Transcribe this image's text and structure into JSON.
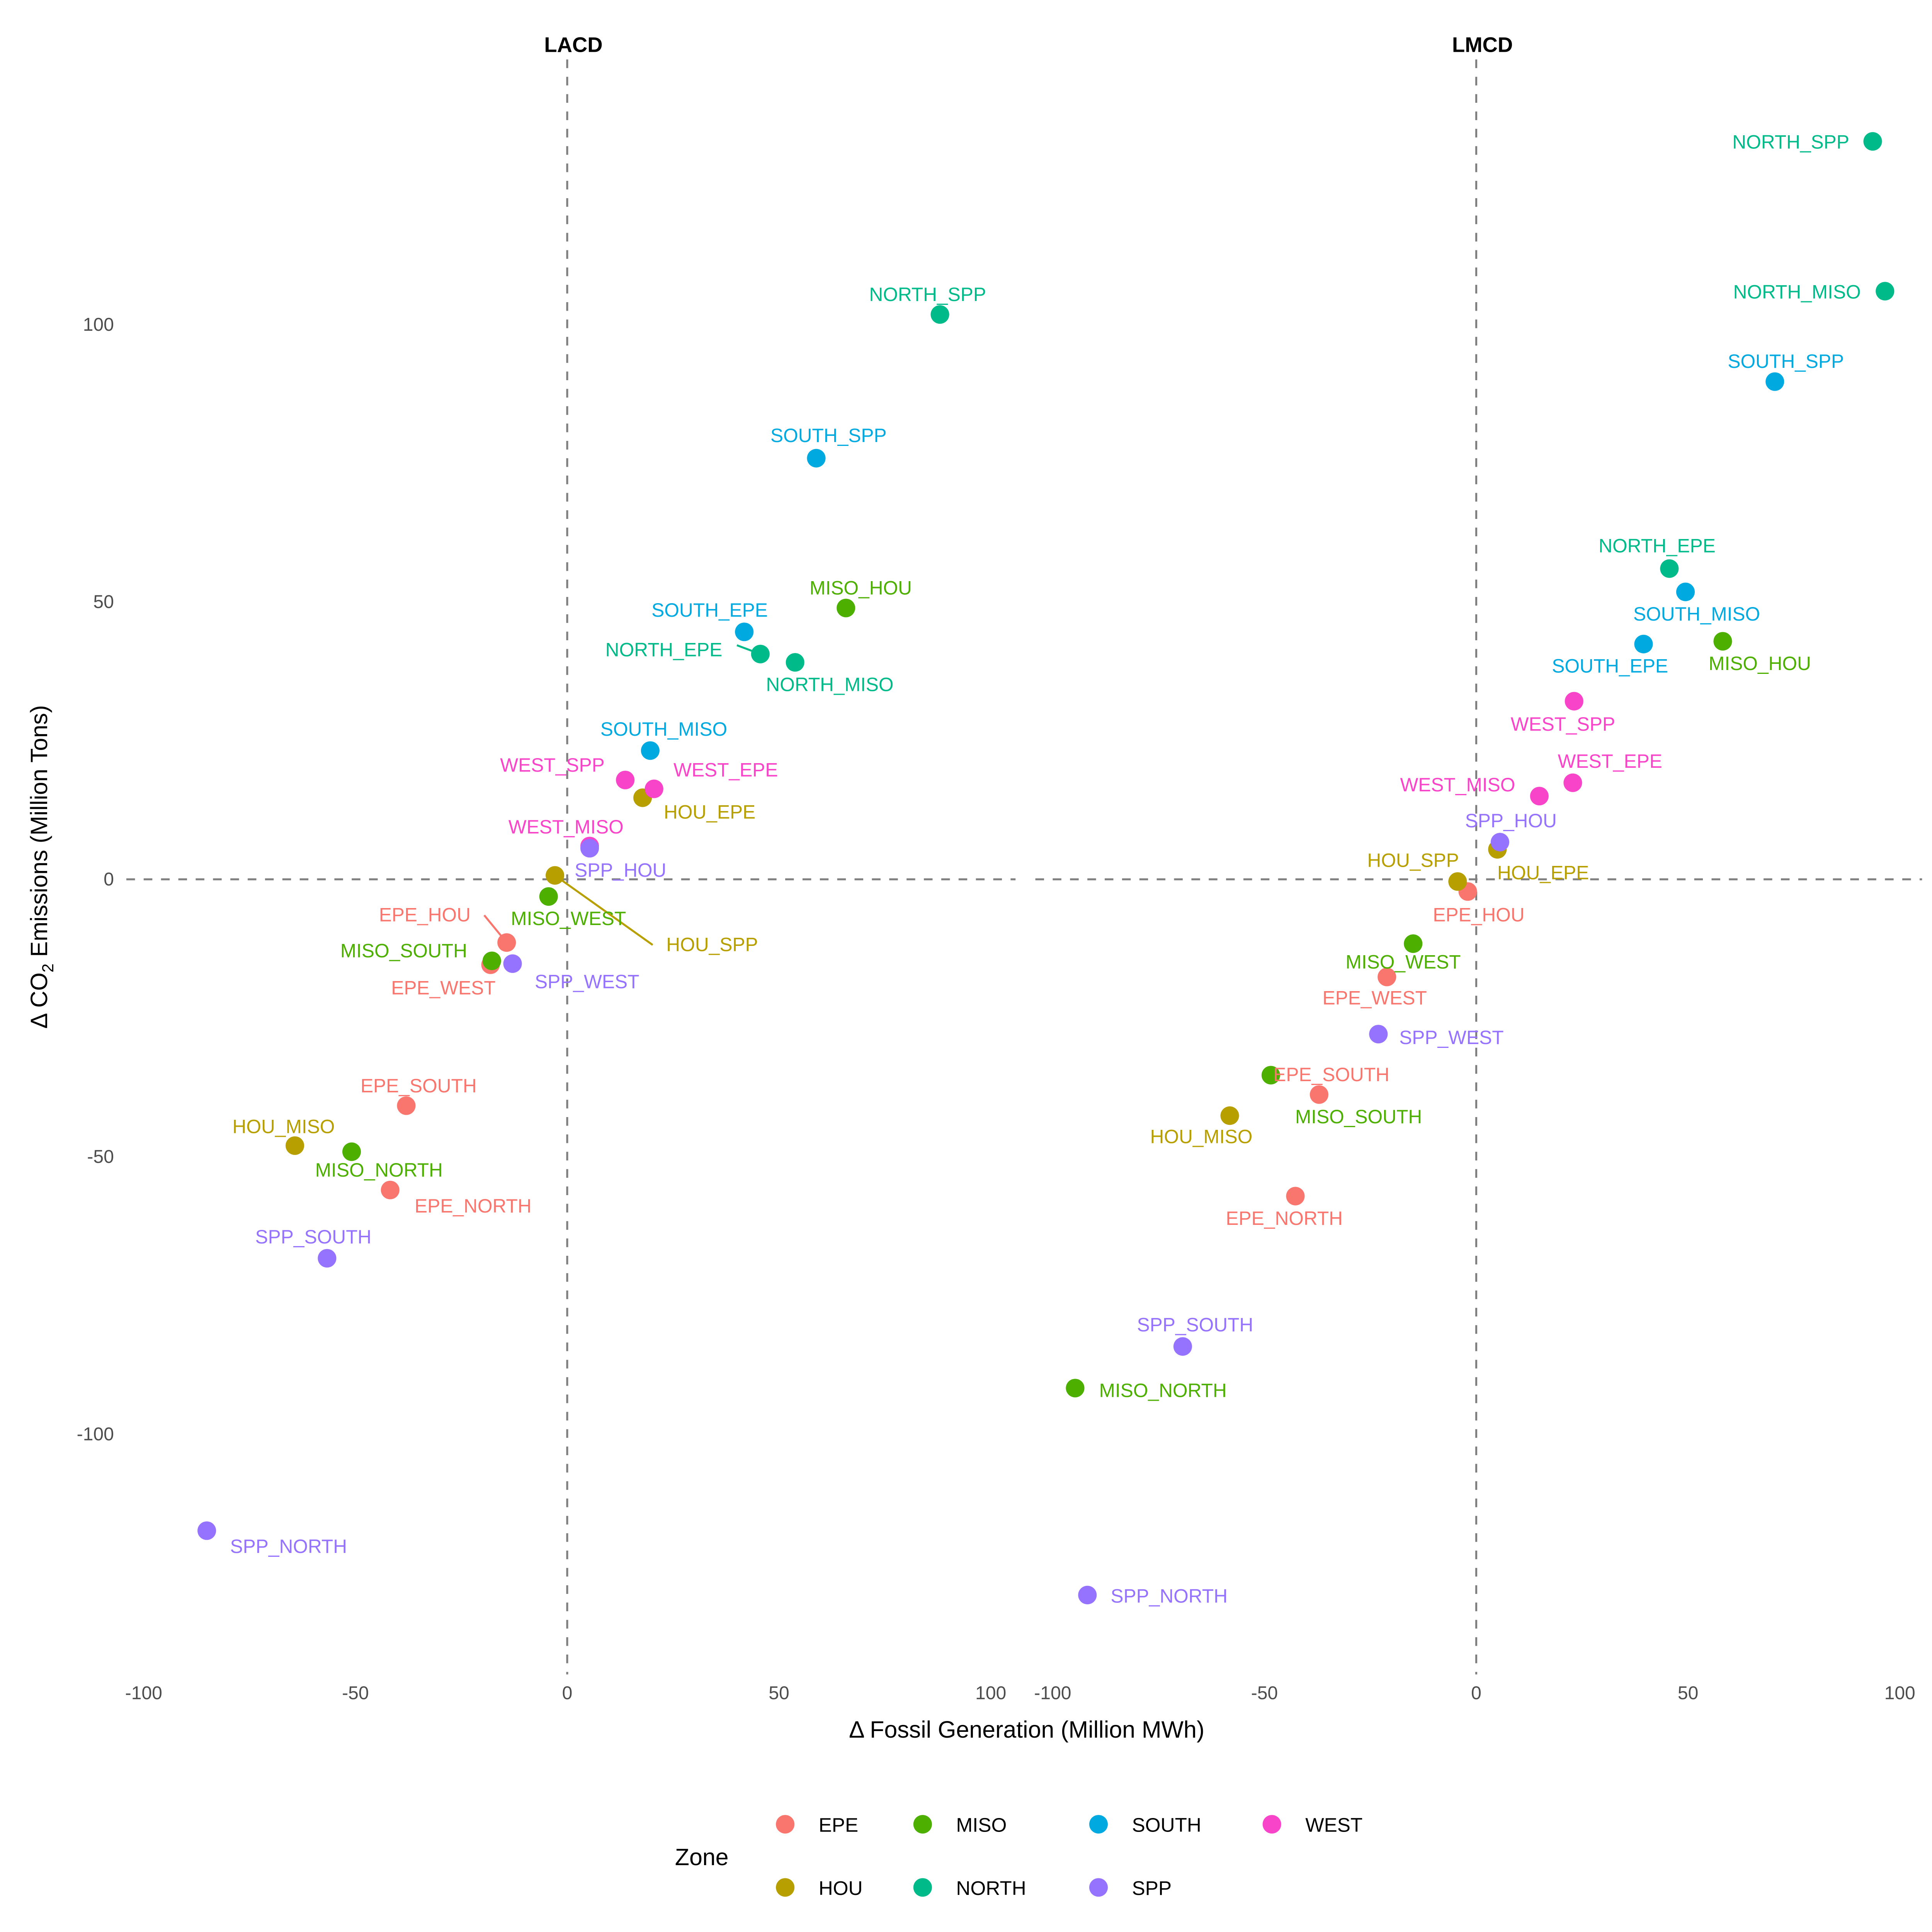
{
  "chart_data": {
    "type": "scatter",
    "xlabel": "Δ Fossil Generation (Million MWh)",
    "ylabel_parts": [
      "Δ CO",
      "2",
      " Emissions (Million Tons)"
    ],
    "ylim": [
      -143,
      147
    ],
    "xlim": [
      -103,
      102
    ],
    "x_ticks": [
      -100,
      -50,
      0,
      50,
      100
    ],
    "y_ticks": [
      -100,
      -50,
      0,
      50,
      100
    ],
    "reference_lines": {
      "x": 0,
      "y": 0,
      "style": "dashed"
    },
    "grid": false,
    "legend": {
      "title": "Zone",
      "placement": "bottom",
      "entries": [
        {
          "name": "EPE",
          "color": "#F8766D"
        },
        {
          "name": "HOU",
          "color": "#B79F00"
        },
        {
          "name": "MISO",
          "color": "#4DAF00"
        },
        {
          "name": "NORTH",
          "color": "#00BA8A"
        },
        {
          "name": "SOUTH",
          "color": "#00A9E0"
        },
        {
          "name": "SPP",
          "color": "#9673FF"
        },
        {
          "name": "WEST",
          "color": "#F844C8"
        }
      ]
    },
    "panels": [
      {
        "title": "LACD",
        "points": [
          {
            "label": "EPE_HOU",
            "zone": "EPE",
            "x": -14.3,
            "y": -11.4
          },
          {
            "label": "EPE_WEST",
            "zone": "EPE",
            "x": -18.1,
            "y": -15.4
          },
          {
            "label": "EPE_SOUTH",
            "zone": "EPE",
            "x": -38.0,
            "y": -40.8
          },
          {
            "label": "EPE_NORTH",
            "zone": "EPE",
            "x": -41.8,
            "y": -56.0
          },
          {
            "label": "HOU_SPP",
            "zone": "HOU",
            "x": -2.9,
            "y": 0.7
          },
          {
            "label": "HOU_EPE",
            "zone": "HOU",
            "x": 17.8,
            "y": 14.7
          },
          {
            "label": "HOU_MISO",
            "zone": "HOU",
            "x": -64.3,
            "y": -48.0
          },
          {
            "label": "MISO_WEST",
            "zone": "MISO",
            "x": -4.4,
            "y": -3.1
          },
          {
            "label": "MISO_SOUTH",
            "zone": "MISO",
            "x": -17.8,
            "y": -14.7
          },
          {
            "label": "MISO_NORTH",
            "zone": "MISO",
            "x": -50.9,
            "y": -49.1
          },
          {
            "label": "MISO_HOU",
            "zone": "MISO",
            "x": 65.8,
            "y": 48.9
          },
          {
            "label": "NORTH_SPP",
            "zone": "NORTH",
            "x": 88.0,
            "y": 101.8
          },
          {
            "label": "NORTH_EPE",
            "zone": "NORTH",
            "x": 45.6,
            "y": 40.6
          },
          {
            "label": "NORTH_MISO",
            "zone": "NORTH",
            "x": 53.8,
            "y": 39.1
          },
          {
            "label": "SOUTH_SPP",
            "zone": "SOUTH",
            "x": 58.8,
            "y": 75.9
          },
          {
            "label": "SOUTH_EPE",
            "zone": "SOUTH",
            "x": 41.8,
            "y": 44.6
          },
          {
            "label": "SOUTH_MISO",
            "zone": "SOUTH",
            "x": 19.6,
            "y": 23.2
          },
          {
            "label": "WEST_MISO",
            "zone": "WEST",
            "x": 5.3,
            "y": 6.0
          },
          {
            "label": "SPP_HOU",
            "zone": "SPP",
            "x": 5.3,
            "y": 5.6
          },
          {
            "label": "SPP_WEST",
            "zone": "SPP",
            "x": -12.9,
            "y": -15.2
          },
          {
            "label": "SPP_SOUTH",
            "zone": "SPP",
            "x": -56.7,
            "y": -68.3
          },
          {
            "label": "SPP_NORTH",
            "zone": "SPP",
            "x": -85.1,
            "y": -117.4
          },
          {
            "label": "WEST_SPP",
            "zone": "WEST",
            "x": 13.7,
            "y": 17.9
          },
          {
            "label": "WEST_EPE",
            "zone": "WEST",
            "x": 20.5,
            "y": 16.3
          }
        ]
      },
      {
        "title": "LMCD",
        "points": [
          {
            "label": "EPE_HOU",
            "zone": "EPE",
            "x": -2.0,
            "y": -2.2
          },
          {
            "label": "EPE_WEST",
            "zone": "EPE",
            "x": -21.1,
            "y": -17.6
          },
          {
            "label": "EPE_SOUTH",
            "zone": "EPE",
            "x": -37.1,
            "y": -38.8
          },
          {
            "label": "EPE_NORTH",
            "zone": "EPE",
            "x": -42.7,
            "y": -57.1
          },
          {
            "label": "HOU_SPP",
            "zone": "HOU",
            "x": -4.4,
            "y": -0.4
          },
          {
            "label": "HOU_EPE",
            "zone": "HOU",
            "x": 5.0,
            "y": 5.4
          },
          {
            "label": "HOU_MISO",
            "zone": "HOU",
            "x": -58.2,
            "y": -42.6
          },
          {
            "label": "MISO_WEST",
            "zone": "MISO",
            "x": -14.9,
            "y": -11.6
          },
          {
            "label": "MISO_SOUTH",
            "zone": "MISO",
            "x": -48.5,
            "y": -35.3
          },
          {
            "label": "MISO_NORTH",
            "zone": "MISO",
            "x": -94.7,
            "y": -91.7
          },
          {
            "label": "MISO_HOU",
            "zone": "MISO",
            "x": 58.2,
            "y": 42.9
          },
          {
            "label": "NORTH_SPP",
            "zone": "NORTH",
            "x": 93.6,
            "y": 133.0
          },
          {
            "label": "NORTH_MISO",
            "zone": "NORTH",
            "x": 96.5,
            "y": 106.0
          },
          {
            "label": "NORTH_EPE",
            "zone": "NORTH",
            "x": 45.6,
            "y": 56.0
          },
          {
            "label": "SOUTH_SPP",
            "zone": "SOUTH",
            "x": 70.5,
            "y": 89.7
          },
          {
            "label": "SOUTH_MISO",
            "zone": "SOUTH",
            "x": 49.4,
            "y": 51.8
          },
          {
            "label": "SOUTH_EPE",
            "zone": "SOUTH",
            "x": 39.5,
            "y": 42.4
          },
          {
            "label": "SPP_HOU",
            "zone": "SPP",
            "x": 5.6,
            "y": 6.7
          },
          {
            "label": "SPP_WEST",
            "zone": "SPP",
            "x": -23.1,
            "y": -27.9
          },
          {
            "label": "SPP_SOUTH",
            "zone": "SPP",
            "x": -69.3,
            "y": -84.2
          },
          {
            "label": "SPP_NORTH",
            "zone": "SPP",
            "x": -91.8,
            "y": -129.0
          },
          {
            "label": "WEST_SPP",
            "zone": "WEST",
            "x": 23.1,
            "y": 32.1
          },
          {
            "label": "WEST_EPE",
            "zone": "WEST",
            "x": 22.8,
            "y": 17.4
          },
          {
            "label": "WEST_MISO",
            "zone": "WEST",
            "x": 14.9,
            "y": 15.0
          }
        ]
      }
    ]
  }
}
